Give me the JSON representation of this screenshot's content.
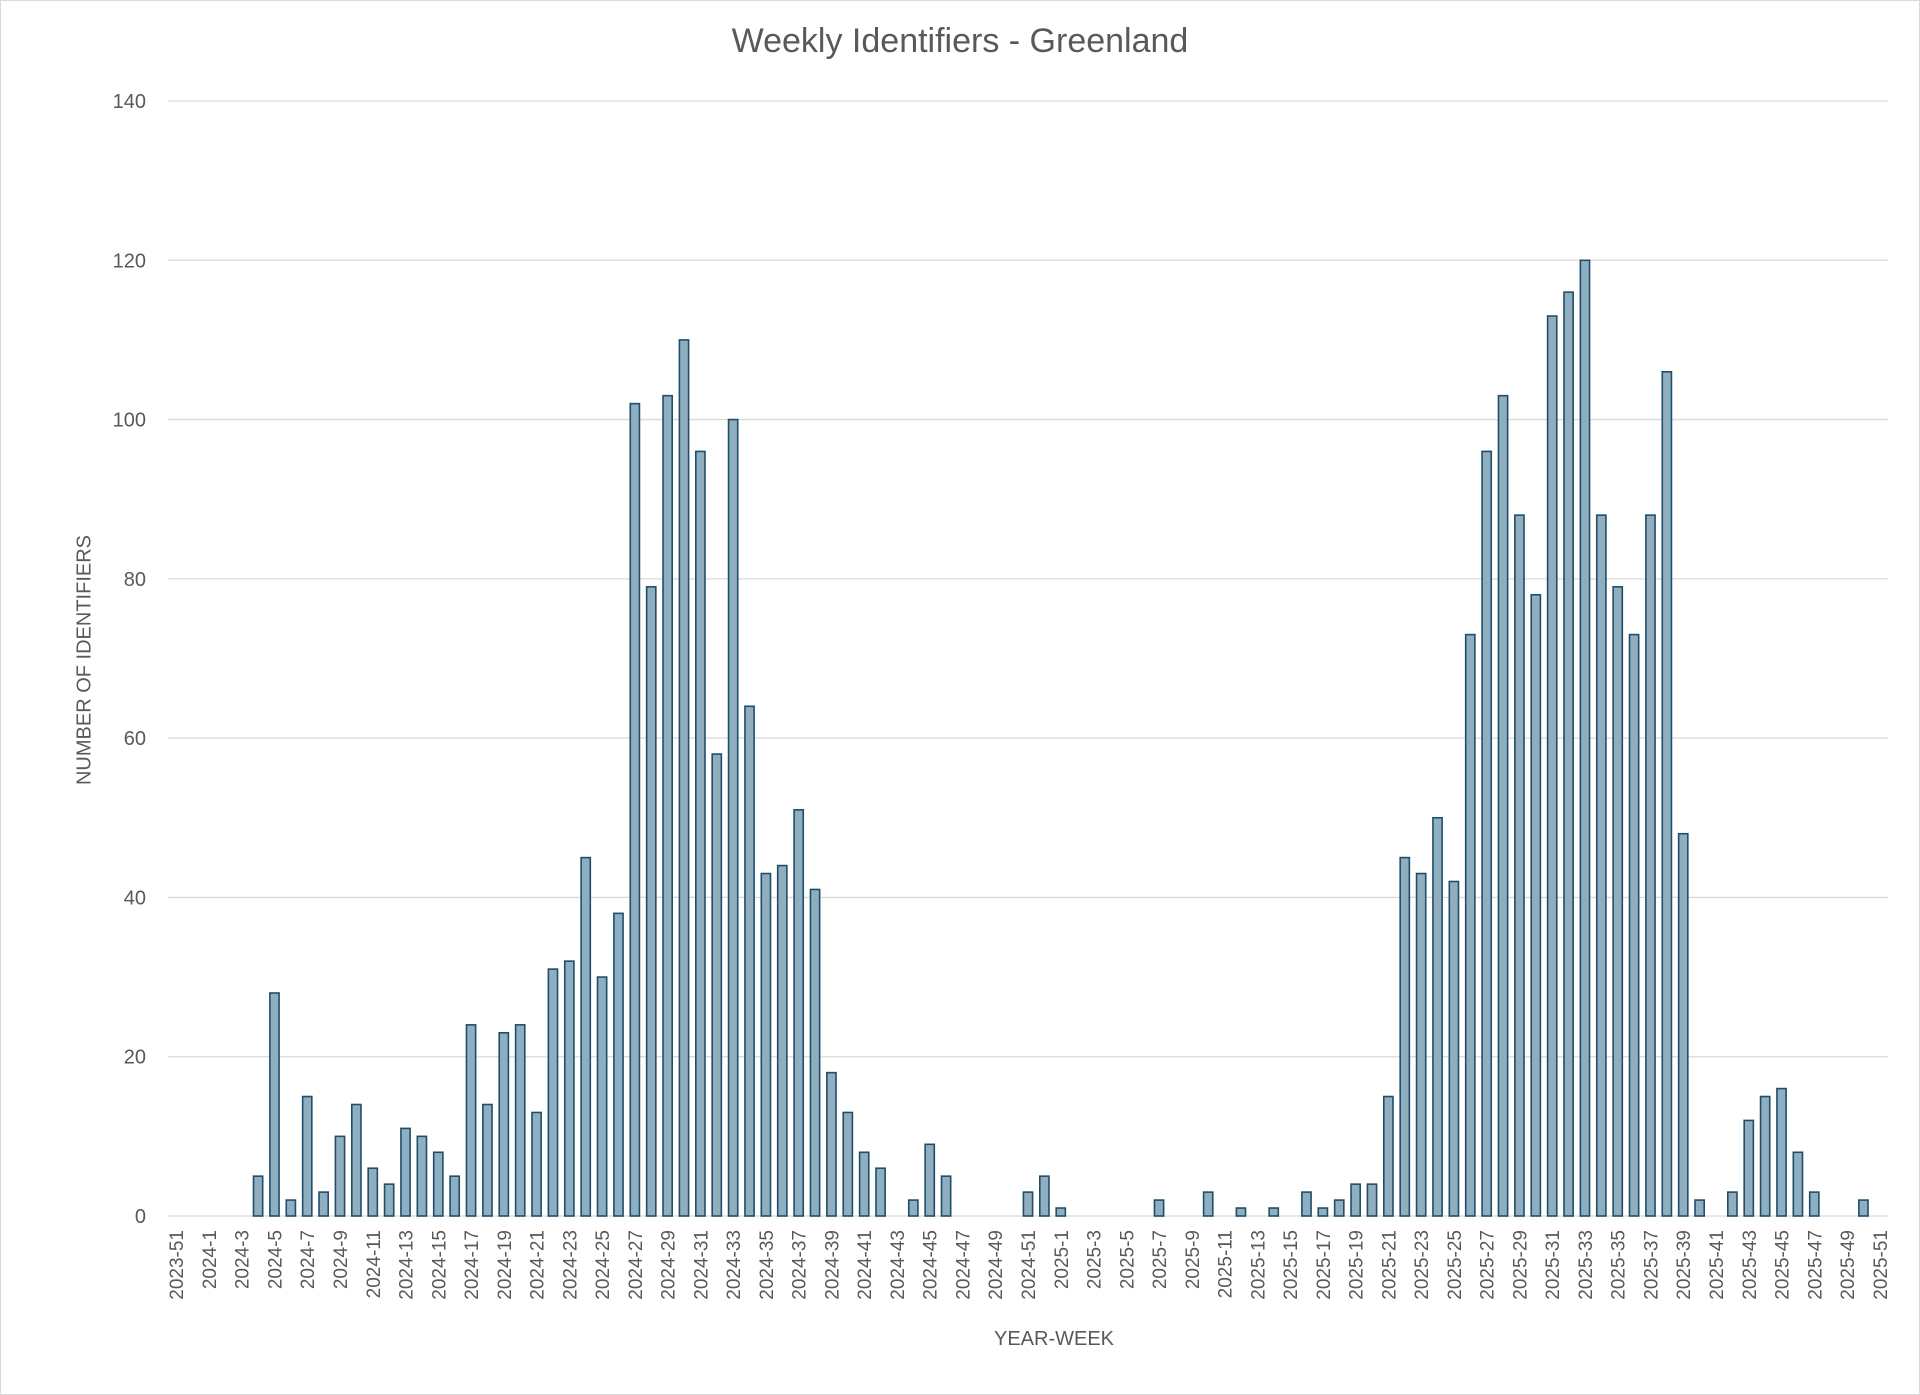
{
  "chart_data": {
    "type": "bar",
    "title": "Weekly Identifiers - Greenland",
    "xlabel": "YEAR-WEEK",
    "ylabel": "NUMBER OF IDENTIFIERS",
    "ylim": [
      0,
      140
    ],
    "yticks": [
      0,
      20,
      40,
      60,
      80,
      100,
      120,
      140
    ],
    "grid": true,
    "bar_color": "#8fafc1",
    "bar_edge_color": "#1f4e6b",
    "categories": [
      "2023-51",
      "2023-52",
      "2024-1",
      "2024-2",
      "2024-3",
      "2024-4",
      "2024-5",
      "2024-6",
      "2024-7",
      "2024-8",
      "2024-9",
      "2024-10",
      "2024-11",
      "2024-12",
      "2024-13",
      "2024-14",
      "2024-15",
      "2024-16",
      "2024-17",
      "2024-18",
      "2024-19",
      "2024-20",
      "2024-21",
      "2024-22",
      "2024-23",
      "2024-24",
      "2024-25",
      "2024-26",
      "2024-27",
      "2024-28",
      "2024-29",
      "2024-30",
      "2024-31",
      "2024-32",
      "2024-33",
      "2024-34",
      "2024-35",
      "2024-36",
      "2024-37",
      "2024-38",
      "2024-39",
      "2024-40",
      "2024-41",
      "2024-42",
      "2024-43",
      "2024-44",
      "2024-45",
      "2024-46",
      "2024-47",
      "2024-48",
      "2024-49",
      "2024-50",
      "2024-51",
      "2024-52",
      "2025-1",
      "2025-2",
      "2025-3",
      "2025-4",
      "2025-5",
      "2025-6",
      "2025-7",
      "2025-8",
      "2025-9",
      "2025-10",
      "2025-11",
      "2025-12",
      "2025-13",
      "2025-14",
      "2025-15",
      "2025-16",
      "2025-17",
      "2025-18",
      "2025-19",
      "2025-20",
      "2025-21",
      "2025-22",
      "2025-23",
      "2025-24",
      "2025-25",
      "2025-26",
      "2025-27",
      "2025-28",
      "2025-29",
      "2025-30",
      "2025-31",
      "2025-32",
      "2025-33",
      "2025-34",
      "2025-35",
      "2025-36",
      "2025-37",
      "2025-38",
      "2025-39",
      "2025-40",
      "2025-41",
      "2025-42",
      "2025-43",
      "2025-44",
      "2025-45",
      "2025-46",
      "2025-47",
      "2025-48",
      "2025-49",
      "2025-50",
      "2025-51"
    ],
    "tick_labels": [
      "2023-51",
      "2024-1",
      "2024-3",
      "2024-5",
      "2024-7",
      "2024-9",
      "2024-11",
      "2024-13",
      "2024-15",
      "2024-17",
      "2024-19",
      "2024-21",
      "2024-23",
      "2024-25",
      "2024-27",
      "2024-29",
      "2024-31",
      "2024-33",
      "2024-35",
      "2024-37",
      "2024-39",
      "2024-41",
      "2024-43",
      "2024-45",
      "2024-47",
      "2024-49",
      "2024-51",
      "2025-1",
      "2025-3",
      "2025-5",
      "2025-7",
      "2025-9",
      "2025-11",
      "2025-13",
      "2025-15",
      "2025-17",
      "2025-19",
      "2025-21",
      "2025-23",
      "2025-25",
      "2025-27",
      "2025-29",
      "2025-31",
      "2025-33",
      "2025-35",
      "2025-37",
      "2025-39",
      "2025-41",
      "2025-43",
      "2025-45",
      "2025-47",
      "2025-49",
      "2025-51"
    ],
    "values": [
      0,
      0,
      0,
      0,
      0,
      5,
      28,
      2,
      15,
      3,
      10,
      14,
      6,
      4,
      11,
      10,
      8,
      5,
      24,
      14,
      23,
      24,
      13,
      31,
      32,
      45,
      30,
      38,
      102,
      79,
      103,
      110,
      96,
      58,
      100,
      64,
      43,
      44,
      51,
      41,
      18,
      13,
      8,
      6,
      0,
      2,
      9,
      5,
      0,
      0,
      0,
      0,
      3,
      5,
      1,
      0,
      0,
      0,
      0,
      0,
      2,
      0,
      0,
      3,
      0,
      1,
      0,
      1,
      0,
      3,
      1,
      2,
      4,
      4,
      15,
      45,
      43,
      50,
      42,
      73,
      96,
      103,
      88,
      78,
      113,
      116,
      120,
      88,
      79,
      73,
      88,
      106,
      48,
      2,
      0,
      3,
      12,
      15,
      16,
      8,
      3,
      0,
      0,
      2,
      0
    ]
  }
}
